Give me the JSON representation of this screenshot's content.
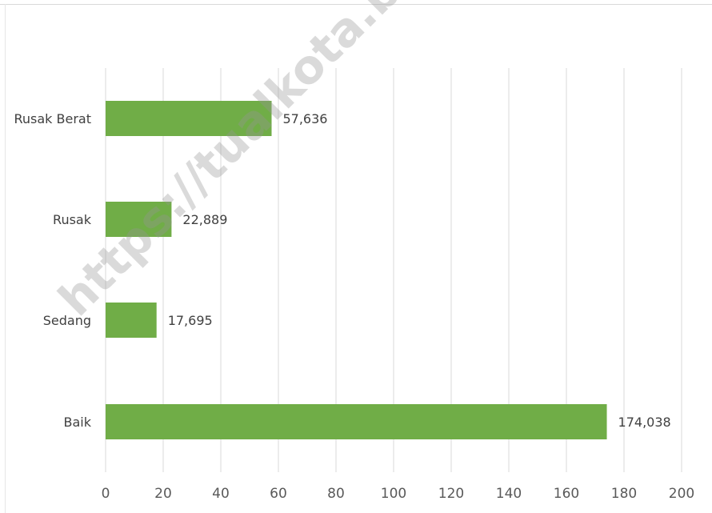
{
  "watermark": "https://tualkota.bps.go.id",
  "colors": {
    "bar": "#70ad47",
    "grid": "#d9d9d9",
    "text": "#404040"
  },
  "chart_data": {
    "type": "bar",
    "orientation": "horizontal",
    "categories": [
      "Rusak Berat",
      "Rusak",
      "Sedang",
      "Baik"
    ],
    "values": [
      57.636,
      22.889,
      17.695,
      174.038
    ],
    "data_labels": [
      "57,636",
      "22,889",
      "17,695",
      "174,038"
    ],
    "xlim": [
      0,
      200
    ],
    "xticks": [
      "0",
      "20",
      "40",
      "60",
      "80",
      "100",
      "120",
      "140",
      "160",
      "180",
      "200"
    ],
    "grid": true,
    "title": "",
    "xlabel": "",
    "ylabel": ""
  }
}
